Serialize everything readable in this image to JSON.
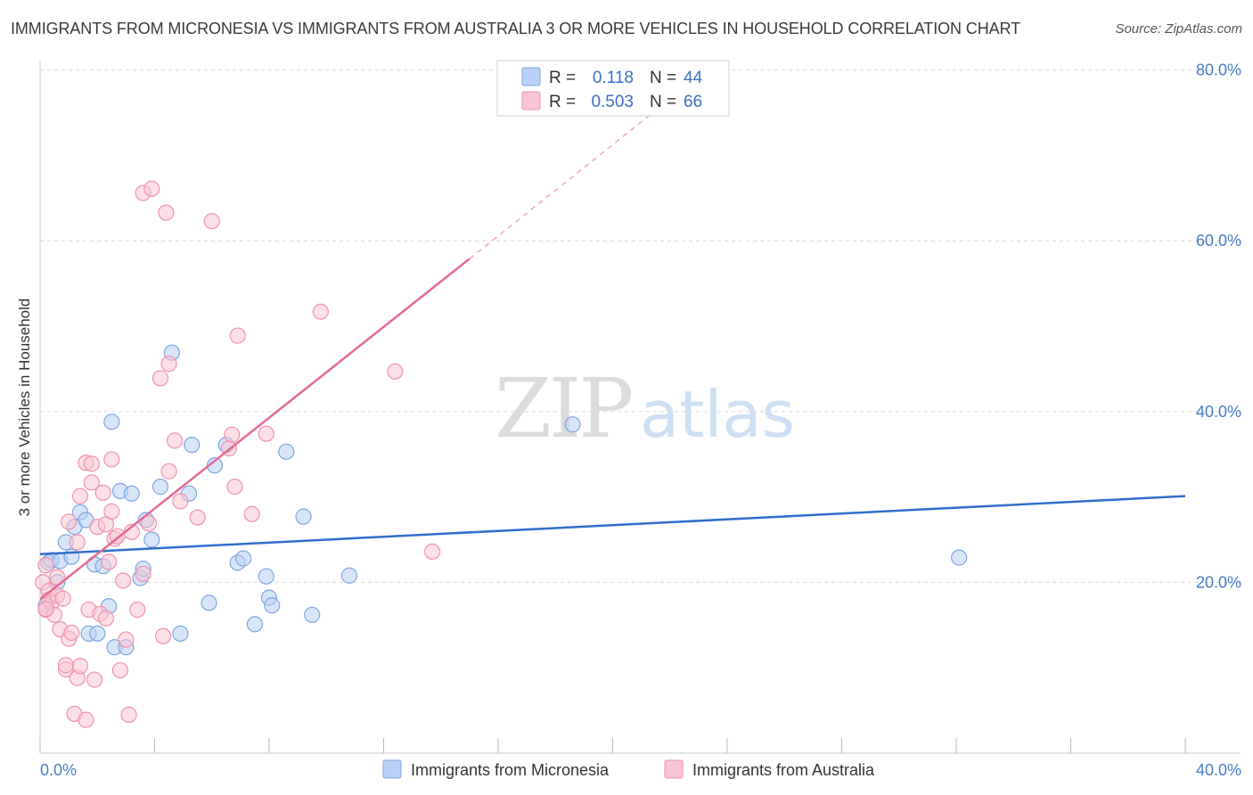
{
  "title": "IMMIGRANTS FROM MICRONESIA VS IMMIGRANTS FROM AUSTRALIA 3 OR MORE VEHICLES IN HOUSEHOLD CORRELATION CHART",
  "source": "Source: ZipAtlas.com",
  "watermark": {
    "zip": "ZIP",
    "atlas": "atlas"
  },
  "colors": {
    "micronesia_fill": "#b8d0f4",
    "micronesia_stroke": "#7fa6e0",
    "micronesia_line": "#2f6fcc",
    "australia_fill": "#f9c4d3",
    "australia_stroke": "#ef93ae",
    "australia_line": "#e56a92",
    "tick_label": "#4a7cc7",
    "grid": "#d8d8d8"
  },
  "legend": {
    "r_label": "R =",
    "n_label": "N =",
    "rows": [
      {
        "r": "0.118",
        "n": "44"
      },
      {
        "r": "0.503",
        "n": "66"
      }
    ]
  },
  "chart_data": {
    "type": "scatter",
    "title": "IMMIGRANTS FROM MICRONESIA VS IMMIGRANTS FROM AUSTRALIA 3 OR MORE VEHICLES IN HOUSEHOLD CORRELATION CHART",
    "xlabel": "",
    "ylabel": "3 or more Vehicles in Household",
    "xlim": [
      0,
      40
    ],
    "ylim": [
      0,
      80
    ],
    "x_tick_labels": [
      "0.0%",
      "40.0%"
    ],
    "y_ticks": [
      20,
      40,
      60,
      80
    ],
    "y_tick_labels": [
      "20.0%",
      "40.0%",
      "60.0%",
      "80.0%"
    ],
    "grid": true,
    "legend_position": "top-center",
    "series": [
      {
        "name": "Immigrants from Micronesia",
        "r": 0.118,
        "n": 44,
        "trend": {
          "x": [
            0,
            40
          ],
          "y": [
            23.3,
            30.1
          ]
        },
        "points": [
          [
            0.3,
            22.3
          ],
          [
            0.4,
            22.6
          ],
          [
            0.6,
            20.0
          ],
          [
            0.7,
            22.5
          ],
          [
            0.9,
            24.7
          ],
          [
            1.1,
            23.0
          ],
          [
            1.2,
            26.5
          ],
          [
            1.4,
            28.2
          ],
          [
            1.6,
            27.3
          ],
          [
            1.7,
            14.0
          ],
          [
            1.9,
            22.1
          ],
          [
            2.0,
            14.0
          ],
          [
            2.2,
            21.9
          ],
          [
            2.4,
            17.2
          ],
          [
            2.5,
            38.8
          ],
          [
            2.6,
            12.4
          ],
          [
            2.8,
            30.7
          ],
          [
            3.0,
            12.4
          ],
          [
            3.2,
            30.4
          ],
          [
            3.5,
            20.5
          ],
          [
            3.6,
            21.6
          ],
          [
            3.7,
            27.3
          ],
          [
            3.9,
            25.0
          ],
          [
            4.2,
            31.2
          ],
          [
            4.6,
            46.9
          ],
          [
            4.9,
            14.0
          ],
          [
            5.2,
            30.4
          ],
          [
            5.3,
            36.1
          ],
          [
            5.9,
            17.6
          ],
          [
            6.1,
            33.7
          ],
          [
            6.5,
            36.1
          ],
          [
            6.9,
            22.3
          ],
          [
            7.1,
            22.8
          ],
          [
            7.5,
            15.1
          ],
          [
            7.9,
            20.7
          ],
          [
            8.0,
            18.2
          ],
          [
            8.1,
            17.3
          ],
          [
            8.6,
            35.3
          ],
          [
            9.2,
            27.7
          ],
          [
            9.5,
            16.2
          ],
          [
            10.8,
            20.8
          ],
          [
            18.6,
            38.5
          ],
          [
            32.1,
            22.9
          ],
          [
            0.2,
            17.3
          ]
        ]
      },
      {
        "name": "Immigrants from Australia",
        "r": 0.503,
        "n": 66,
        "trend": {
          "x": [
            0,
            15.0
          ],
          "y": [
            18.0,
            57.9
          ]
        },
        "trend_dashed": {
          "x": [
            15.0,
            22.0
          ],
          "y": [
            57.9,
            76.6
          ]
        },
        "points": [
          [
            0.1,
            20.0
          ],
          [
            0.2,
            16.8
          ],
          [
            0.2,
            22.0
          ],
          [
            0.3,
            19.0
          ],
          [
            0.3,
            18.0
          ],
          [
            0.4,
            17.6
          ],
          [
            0.5,
            16.2
          ],
          [
            0.6,
            20.6
          ],
          [
            0.6,
            18.5
          ],
          [
            0.7,
            14.5
          ],
          [
            0.8,
            18.1
          ],
          [
            0.9,
            9.8
          ],
          [
            0.9,
            10.3
          ],
          [
            1.0,
            13.4
          ],
          [
            1.0,
            27.1
          ],
          [
            1.1,
            14.1
          ],
          [
            1.2,
            4.6
          ],
          [
            1.3,
            8.8
          ],
          [
            1.3,
            24.7
          ],
          [
            1.4,
            10.2
          ],
          [
            1.4,
            30.1
          ],
          [
            1.6,
            3.9
          ],
          [
            1.6,
            34.0
          ],
          [
            1.7,
            16.8
          ],
          [
            1.8,
            31.7
          ],
          [
            1.8,
            33.9
          ],
          [
            1.9,
            8.6
          ],
          [
            2.0,
            26.5
          ],
          [
            2.1,
            16.3
          ],
          [
            2.2,
            30.5
          ],
          [
            2.3,
            15.8
          ],
          [
            2.3,
            26.8
          ],
          [
            2.4,
            22.4
          ],
          [
            2.5,
            34.4
          ],
          [
            2.5,
            28.3
          ],
          [
            2.6,
            25.1
          ],
          [
            2.7,
            25.4
          ],
          [
            2.8,
            9.7
          ],
          [
            2.9,
            20.2
          ],
          [
            3.0,
            13.3
          ],
          [
            3.1,
            4.5
          ],
          [
            3.2,
            25.9
          ],
          [
            3.4,
            16.8
          ],
          [
            3.6,
            21.0
          ],
          [
            3.6,
            65.6
          ],
          [
            3.8,
            26.9
          ],
          [
            3.9,
            66.1
          ],
          [
            4.2,
            43.9
          ],
          [
            4.3,
            13.7
          ],
          [
            4.4,
            63.3
          ],
          [
            4.5,
            33.0
          ],
          [
            4.5,
            45.6
          ],
          [
            4.7,
            36.6
          ],
          [
            4.9,
            29.5
          ],
          [
            5.5,
            27.6
          ],
          [
            6.0,
            62.3
          ],
          [
            6.6,
            35.7
          ],
          [
            6.7,
            37.3
          ],
          [
            6.8,
            31.2
          ],
          [
            6.9,
            48.9
          ],
          [
            7.4,
            28.0
          ],
          [
            7.9,
            37.4
          ],
          [
            9.8,
            51.7
          ],
          [
            12.4,
            44.7
          ],
          [
            13.7,
            23.6
          ],
          [
            0.2,
            16.9
          ]
        ]
      }
    ]
  }
}
